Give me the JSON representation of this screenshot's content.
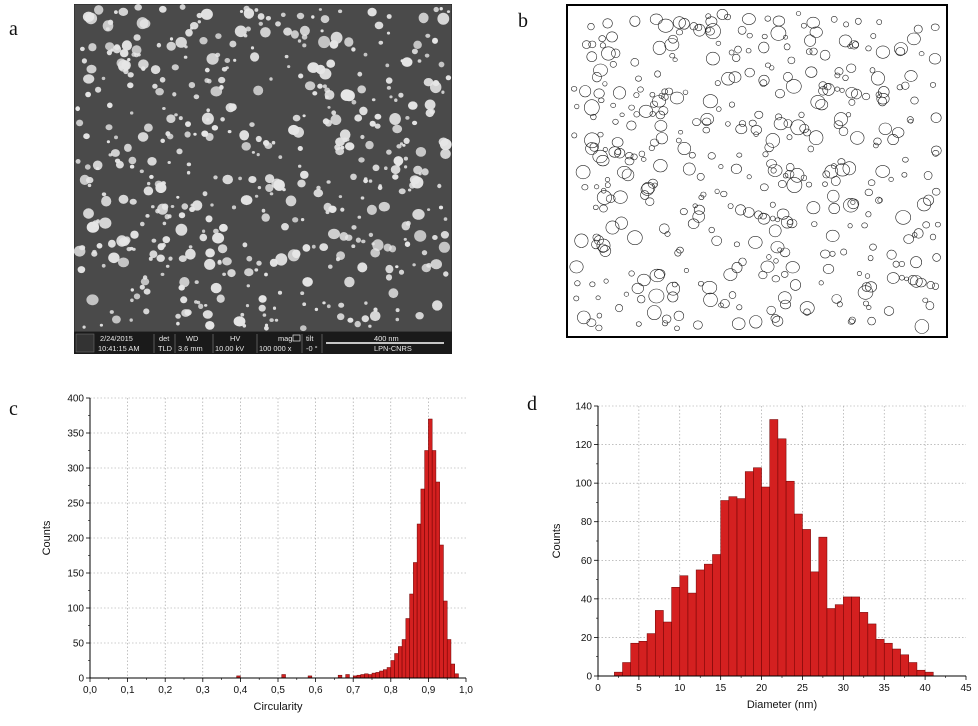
{
  "panels": {
    "a": "a",
    "b": "b",
    "c": "c",
    "d": "d"
  },
  "sem_bar": {
    "date": "2/24/2015",
    "time": "10:41:15 AM",
    "det_label": "det",
    "det_value": "TLD",
    "wd_label": "WD",
    "wd_value": "3.6 mm",
    "hv_label": "HV",
    "hv_value": "10.00 kV",
    "mag_label": "mag",
    "mag_value": "100 000 x",
    "tilt_label": "tilt",
    "tilt_value": "-0 °",
    "scale_label": "400 nm",
    "lab": "LPN-CNRS"
  },
  "colors": {
    "bar_fill": "#d42020",
    "bar_stroke": "#6a0000",
    "sem_bg": "#4a4a4a",
    "particle": "#e6e6e6"
  },
  "chart_data": [
    {
      "type": "bar",
      "panel": "c",
      "xlabel": "Circularity",
      "ylabel": "Counts",
      "xlim": [
        0,
        1.0
      ],
      "ylim": [
        0,
        400
      ],
      "xticks": [
        "0,0",
        "0,1",
        "0,2",
        "0,3",
        "0,4",
        "0,5",
        "0,6",
        "0,7",
        "0,8",
        "0,9",
        "1,0"
      ],
      "yticks": [
        "0",
        "50",
        "100",
        "150",
        "200",
        "250",
        "300",
        "350",
        "400"
      ],
      "grid": true,
      "bin_width": 0.01,
      "bins_x": [
        0.39,
        0.51,
        0.58,
        0.66,
        0.68,
        0.7,
        0.71,
        0.72,
        0.73,
        0.74,
        0.75,
        0.76,
        0.77,
        0.78,
        0.79,
        0.8,
        0.81,
        0.82,
        0.83,
        0.84,
        0.85,
        0.86,
        0.87,
        0.88,
        0.89,
        0.9,
        0.91,
        0.92,
        0.93,
        0.94,
        0.95,
        0.96,
        0.97
      ],
      "values": [
        3,
        5,
        3,
        4,
        5,
        3,
        4,
        5,
        6,
        5,
        7,
        8,
        10,
        12,
        15,
        25,
        35,
        45,
        55,
        85,
        120,
        165,
        220,
        270,
        325,
        370,
        325,
        280,
        190,
        110,
        55,
        20,
        6
      ]
    },
    {
      "type": "bar",
      "panel": "d",
      "xlabel": "Diameter (nm)",
      "ylabel": "Counts",
      "xlim": [
        0,
        45
      ],
      "ylim": [
        0,
        140
      ],
      "xticks": [
        "0",
        "5",
        "10",
        "15",
        "20",
        "25",
        "30",
        "35",
        "40",
        "45"
      ],
      "yticks": [
        "0",
        "20",
        "40",
        "60",
        "80",
        "100",
        "120",
        "140"
      ],
      "grid": true,
      "bin_width": 1,
      "bins_x": [
        2,
        3,
        4,
        5,
        6,
        7,
        8,
        9,
        10,
        11,
        12,
        13,
        14,
        15,
        16,
        17,
        18,
        19,
        20,
        21,
        22,
        23,
        24,
        25,
        26,
        27,
        28,
        29,
        30,
        31,
        32,
        33,
        34,
        35,
        36,
        37,
        38,
        39,
        40
      ],
      "values": [
        2,
        7,
        17,
        18,
        22,
        34,
        28,
        46,
        52,
        43,
        55,
        58,
        63,
        91,
        93,
        92,
        106,
        108,
        98,
        133,
        123,
        101,
        84,
        76,
        54,
        72,
        35,
        37,
        41,
        41,
        33,
        27,
        19,
        17,
        14,
        11,
        7,
        3,
        2
      ]
    }
  ]
}
